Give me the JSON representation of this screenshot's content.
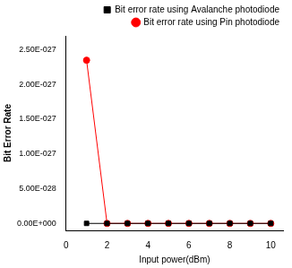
{
  "chart_data": {
    "type": "line",
    "x_label": "Input power(dBm)",
    "y_label": "Bit Error Rate",
    "x": [
      1,
      2,
      3,
      4,
      5,
      6,
      7,
      8,
      9,
      10
    ],
    "series": [
      {
        "name": "Bit error rate using Avalanche photodiode",
        "color": "#000000",
        "marker": "square",
        "values": [
          0,
          0,
          0,
          0,
          0,
          0,
          0,
          0,
          0,
          0
        ]
      },
      {
        "name": "Bit error rate using Pin photodiode",
        "color": "#ff0000",
        "marker": "circle",
        "values": [
          2.35e-27,
          0,
          0,
          0,
          0,
          0,
          0,
          0,
          0,
          0
        ]
      }
    ],
    "xlim": [
      0,
      10.6
    ],
    "xticks": [
      0,
      2,
      4,
      6,
      8,
      10
    ],
    "ylim": [
      -1e-28,
      2.7e-27
    ],
    "yticks": [
      {
        "value": 0,
        "label": "0.00E+000"
      },
      {
        "value": 5e-28,
        "label": "5.00E-028"
      },
      {
        "value": 1e-27,
        "label": "1.00E-027"
      },
      {
        "value": 1.5e-27,
        "label": "1.50E-027"
      },
      {
        "value": 2e-27,
        "label": "2.00E-027"
      },
      {
        "value": 2.5e-27,
        "label": "2.50E-027"
      }
    ],
    "grid": false,
    "legend": "top-right"
  }
}
